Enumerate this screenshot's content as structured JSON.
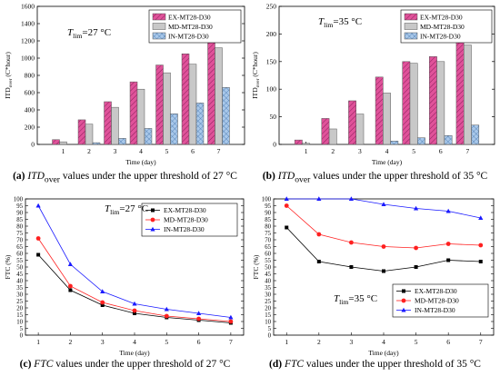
{
  "chart_data": [
    {
      "id": "a",
      "type": "bar",
      "ylabel": "ITD_over (C*hour)",
      "xlabel": "Time (day)",
      "categories": [
        "1",
        "2",
        "3",
        "4",
        "5",
        "6",
        "7"
      ],
      "ylim": [
        0,
        1600
      ],
      "yticks": [
        0,
        200,
        400,
        600,
        800,
        1000,
        1200,
        1400,
        1600
      ],
      "threshold": {
        "symbol": "T",
        "sub": "lim",
        "text": "=27 °C"
      },
      "legend_position": "top-right",
      "series": [
        {
          "name": "EX-MT28-D30",
          "color": "#e0529a",
          "values": [
            55,
            285,
            495,
            725,
            920,
            1050,
            1260
          ]
        },
        {
          "name": "MD-MT28-D30",
          "color": "#c6c6c6",
          "values": [
            30,
            235,
            430,
            640,
            830,
            930,
            1120
          ]
        },
        {
          "name": "IN-MT28-D30",
          "color": "#8fb4dc",
          "values": [
            0,
            20,
            70,
            185,
            355,
            480,
            660
          ]
        }
      ],
      "caption": {
        "label": "(a)",
        "italic": "ITD",
        "sub": "over",
        "text": " values under the upper threshold of 27 °C"
      }
    },
    {
      "id": "b",
      "type": "bar",
      "ylabel": "ITD_over (C*hour)",
      "xlabel": "Time (day)",
      "categories": [
        "1",
        "2",
        "3",
        "4",
        "5",
        "6",
        "7"
      ],
      "ylim": [
        0,
        250
      ],
      "yticks": [
        0,
        50,
        100,
        150,
        200,
        250
      ],
      "threshold": {
        "symbol": "T",
        "sub": "lim",
        "text": "=35 °C"
      },
      "legend_position": "top-right",
      "series": [
        {
          "name": "EX-MT28-D30",
          "color": "#e0529a",
          "values": [
            8,
            47,
            79,
            122,
            150,
            159,
            207
          ]
        },
        {
          "name": "MD-MT28-D30",
          "color": "#c6c6c6",
          "values": [
            2,
            28,
            55,
            93,
            147,
            150,
            180
          ]
        },
        {
          "name": "IN-MT28-D30",
          "color": "#8fb4dc",
          "values": [
            0,
            0,
            0,
            6,
            12,
            16,
            35
          ]
        }
      ],
      "caption": {
        "label": "(b)",
        "italic": "ITD",
        "sub": "over",
        "text": " values under the upper threshold of 35 °C"
      }
    },
    {
      "id": "c",
      "type": "line",
      "ylabel": "FTC (%)",
      "xlabel": "Time (day)",
      "x": [
        1,
        2,
        3,
        4,
        5,
        6,
        7
      ],
      "ylim": [
        0,
        100
      ],
      "yticks": [
        0,
        5,
        10,
        15,
        20,
        25,
        30,
        35,
        40,
        45,
        50,
        55,
        60,
        65,
        70,
        75,
        80,
        85,
        90,
        95,
        100
      ],
      "threshold": {
        "symbol": "T",
        "sub": "lim",
        "text": "=27 °C"
      },
      "legend_position": "top-right",
      "series": [
        {
          "name": "EX-MT28-D30",
          "color": "#000000",
          "marker": "square",
          "values": [
            59,
            33,
            22,
            16,
            13,
            11,
            9
          ]
        },
        {
          "name": "MD-MT28-D30",
          "color": "#ff2020",
          "marker": "circle",
          "values": [
            71,
            36,
            24,
            18,
            14,
            12,
            10
          ]
        },
        {
          "name": "IN-MT28-D30",
          "color": "#1a1aff",
          "marker": "triangle",
          "values": [
            95,
            52,
            32,
            23,
            19,
            16,
            13
          ]
        }
      ],
      "caption": {
        "label": "(c)",
        "italic": "FTC",
        "sub": "",
        "text": " values under the upper threshold of 27 °C"
      }
    },
    {
      "id": "d",
      "type": "line",
      "ylabel": "FTC (%)",
      "xlabel": "Time (day)",
      "x": [
        1,
        2,
        3,
        4,
        5,
        6,
        7
      ],
      "ylim": [
        0,
        100
      ],
      "yticks": [
        0,
        5,
        10,
        15,
        20,
        25,
        30,
        35,
        40,
        45,
        50,
        55,
        60,
        65,
        70,
        75,
        80,
        85,
        90,
        95,
        100
      ],
      "threshold": {
        "symbol": "T",
        "sub": "lim",
        "text": "=35 °C"
      },
      "legend_position": "bottom-right",
      "series": [
        {
          "name": "EX-MT28-D30",
          "color": "#000000",
          "marker": "square",
          "values": [
            79,
            54,
            50,
            47,
            50,
            55,
            54
          ]
        },
        {
          "name": "MD-MT28-D30",
          "color": "#ff2020",
          "marker": "circle",
          "values": [
            95,
            74,
            68,
            65,
            64,
            67,
            66
          ]
        },
        {
          "name": "IN-MT28-D30",
          "color": "#1a1aff",
          "marker": "triangle",
          "values": [
            100,
            100,
            100,
            96,
            93,
            91,
            86
          ]
        }
      ],
      "caption": {
        "label": "(d)",
        "italic": "FTC",
        "sub": "",
        "text": " values under the upper threshold of 35 °C"
      }
    }
  ]
}
